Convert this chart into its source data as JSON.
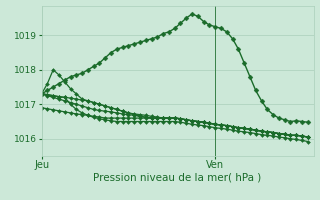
{
  "bg_color": "#cce8d8",
  "grid_color": "#aacfba",
  "line_color": "#1a6b2a",
  "xlabel": "Pression niveau de la mer( hPa )",
  "ylim": [
    1015.5,
    1019.85
  ],
  "yticks": [
    1016,
    1017,
    1018,
    1019
  ],
  "xlim": [
    0,
    47
  ],
  "xtick_positions": [
    0,
    30
  ],
  "xtick_labels": [
    "Jeu",
    "Ven"
  ],
  "vline_x": 30,
  "series": [
    {
      "x": [
        0,
        1,
        2,
        3,
        4,
        5,
        6,
        7,
        8,
        9,
        10,
        11,
        12,
        13,
        14,
        15,
        16,
        17,
        18,
        19,
        20,
        21,
        22,
        23,
        24,
        25,
        26,
        27,
        28,
        29,
        30,
        31,
        32,
        33,
        34,
        35,
        36,
        37,
        38,
        39,
        40,
        41,
        42,
        43,
        44,
        45,
        46
      ],
      "y": [
        1017.3,
        1017.4,
        1017.5,
        1017.6,
        1017.7,
        1017.8,
        1017.85,
        1017.9,
        1018.0,
        1018.1,
        1018.2,
        1018.35,
        1018.5,
        1018.6,
        1018.65,
        1018.7,
        1018.75,
        1018.8,
        1018.85,
        1018.9,
        1018.95,
        1019.05,
        1019.1,
        1019.2,
        1019.35,
        1019.5,
        1019.62,
        1019.55,
        1019.4,
        1019.3,
        1019.25,
        1019.2,
        1019.1,
        1018.9,
        1018.6,
        1018.2,
        1017.8,
        1017.4,
        1017.1,
        1016.85,
        1016.7,
        1016.6,
        1016.55,
        1016.5,
        1016.52,
        1016.5,
        1016.48
      ],
      "lw": 1.0,
      "ms": 2.5
    },
    {
      "x": [
        0,
        1,
        2,
        3,
        4,
        5,
        6,
        7,
        8,
        9,
        10,
        11,
        12,
        13,
        14,
        15,
        16,
        17,
        18,
        19,
        20,
        21,
        22,
        23,
        24,
        25,
        26,
        27,
        28,
        29,
        30,
        31,
        32,
        33,
        34,
        35,
        36,
        37,
        38,
        39,
        40,
        41,
        42,
        43,
        44,
        45,
        46
      ],
      "y": [
        1017.3,
        1017.6,
        1018.0,
        1017.85,
        1017.65,
        1017.45,
        1017.3,
        1017.15,
        1017.1,
        1017.05,
        1017.0,
        1016.95,
        1016.9,
        1016.85,
        1016.8,
        1016.75,
        1016.72,
        1016.7,
        1016.68,
        1016.65,
        1016.63,
        1016.6,
        1016.6,
        1016.6,
        1016.58,
        1016.55,
        1016.52,
        1016.5,
        1016.48,
        1016.45,
        1016.42,
        1016.4,
        1016.38,
        1016.35,
        1016.32,
        1016.3,
        1016.28,
        1016.25,
        1016.22,
        1016.2,
        1016.18,
        1016.15,
        1016.13,
        1016.1,
        1016.1,
        1016.08,
        1016.05
      ],
      "lw": 0.9,
      "ms": 2.0
    },
    {
      "x": [
        0,
        1,
        2,
        3,
        4,
        5,
        6,
        7,
        8,
        9,
        10,
        11,
        12,
        13,
        14,
        15,
        16,
        17,
        18,
        19,
        20,
        21,
        22,
        23,
        24,
        25,
        26,
        27,
        28,
        29,
        30,
        31,
        32,
        33,
        34,
        35,
        36,
        37,
        38,
        39,
        40,
        41,
        42,
        43,
        44,
        45,
        46
      ],
      "y": [
        1017.3,
        1017.25,
        1017.2,
        1017.15,
        1017.1,
        1017.05,
        1017.0,
        1016.95,
        1016.9,
        1016.85,
        1016.82,
        1016.8,
        1016.78,
        1016.75,
        1016.72,
        1016.7,
        1016.68,
        1016.65,
        1016.63,
        1016.6,
        1016.6,
        1016.6,
        1016.6,
        1016.6,
        1016.58,
        1016.55,
        1016.52,
        1016.5,
        1016.48,
        1016.45,
        1016.42,
        1016.4,
        1016.38,
        1016.35,
        1016.32,
        1016.3,
        1016.28,
        1016.25,
        1016.22,
        1016.2,
        1016.18,
        1016.15,
        1016.13,
        1016.1,
        1016.1,
        1016.08,
        1016.05
      ],
      "lw": 0.9,
      "ms": 2.0
    },
    {
      "x": [
        0,
        1,
        2,
        3,
        4,
        5,
        6,
        7,
        8,
        9,
        10,
        11,
        12,
        13,
        14,
        15,
        16,
        17,
        18,
        19,
        20,
        21,
        22,
        23,
        24,
        25,
        26,
        27,
        28,
        29,
        30,
        31,
        32,
        33,
        34,
        35,
        36,
        37,
        38,
        39,
        40,
        41,
        42,
        43,
        44,
        45,
        46
      ],
      "y": [
        1016.9,
        1016.87,
        1016.84,
        1016.81,
        1016.78,
        1016.75,
        1016.72,
        1016.7,
        1016.68,
        1016.65,
        1016.63,
        1016.6,
        1016.6,
        1016.6,
        1016.6,
        1016.6,
        1016.6,
        1016.6,
        1016.6,
        1016.6,
        1016.6,
        1016.6,
        1016.6,
        1016.6,
        1016.58,
        1016.55,
        1016.52,
        1016.5,
        1016.48,
        1016.45,
        1016.42,
        1016.4,
        1016.38,
        1016.35,
        1016.32,
        1016.3,
        1016.28,
        1016.25,
        1016.22,
        1016.2,
        1016.18,
        1016.15,
        1016.13,
        1016.1,
        1016.1,
        1016.08,
        1016.05
      ],
      "lw": 0.9,
      "ms": 2.0
    },
    {
      "x": [
        0,
        1,
        2,
        3,
        4,
        5,
        6,
        7,
        8,
        9,
        10,
        11,
        12,
        13,
        14,
        15,
        16,
        17,
        18,
        19,
        20,
        21,
        22,
        23,
        24,
        25,
        26,
        27,
        28,
        29,
        30,
        31,
        32,
        33,
        34,
        35,
        36,
        37,
        38,
        39,
        40,
        41,
        42,
        43,
        44,
        45,
        46
      ],
      "y": [
        1017.3,
        1017.28,
        1017.25,
        1017.22,
        1017.2,
        1017.18,
        1017.15,
        1017.12,
        1017.1,
        1017.05,
        1017.0,
        1016.95,
        1016.9,
        1016.85,
        1016.8,
        1016.75,
        1016.7,
        1016.65,
        1016.62,
        1016.6,
        1016.6,
        1016.6,
        1016.6,
        1016.6,
        1016.58,
        1016.55,
        1016.52,
        1016.5,
        1016.48,
        1016.45,
        1016.42,
        1016.4,
        1016.38,
        1016.35,
        1016.32,
        1016.3,
        1016.28,
        1016.25,
        1016.22,
        1016.2,
        1016.18,
        1016.15,
        1016.13,
        1016.1,
        1016.1,
        1016.08,
        1016.05
      ],
      "lw": 0.9,
      "ms": 2.0
    },
    {
      "x": [
        0,
        1,
        2,
        3,
        4,
        5,
        6,
        7,
        8,
        9,
        10,
        11,
        12,
        13,
        14,
        15,
        16,
        17,
        18,
        19,
        20,
        21,
        22,
        23,
        24,
        25,
        26,
        27,
        28,
        29,
        30,
        31,
        32,
        33,
        34,
        35,
        36,
        37,
        38,
        39,
        40,
        41,
        42,
        43,
        44,
        45,
        46
      ],
      "y": [
        1017.3,
        1017.28,
        1017.25,
        1017.22,
        1017.2,
        1017.0,
        1016.85,
        1016.75,
        1016.68,
        1016.62,
        1016.58,
        1016.55,
        1016.52,
        1016.5,
        1016.5,
        1016.5,
        1016.5,
        1016.5,
        1016.5,
        1016.5,
        1016.5,
        1016.5,
        1016.5,
        1016.5,
        1016.48,
        1016.45,
        1016.42,
        1016.4,
        1016.38,
        1016.35,
        1016.32,
        1016.3,
        1016.28,
        1016.25,
        1016.22,
        1016.2,
        1016.18,
        1016.15,
        1016.12,
        1016.1,
        1016.08,
        1016.05,
        1016.03,
        1016.0,
        1015.98,
        1015.95,
        1015.92
      ],
      "lw": 0.9,
      "ms": 2.0
    }
  ]
}
